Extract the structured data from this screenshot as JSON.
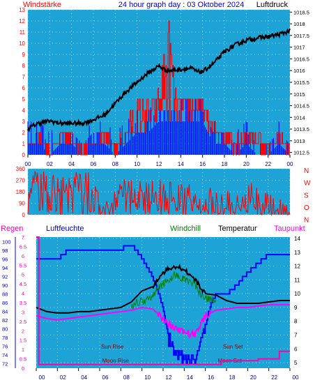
{
  "header": {
    "title": "24 hour graph day : 03 Oktober 2024",
    "left_label": "Windstärke",
    "right_label": "Luftdruck"
  },
  "colors": {
    "plot_bg": "#1ea3d6",
    "wind_speed": "#ff0000",
    "wind_gust_blue": "#0000ff",
    "pressure": "#000000",
    "title": "#0000cc",
    "wind_direction": "#ff0000",
    "humidity": "#0000ff",
    "windchill": "#008000",
    "temperature": "#000000",
    "dewpoint": "#ff00ff",
    "rain": "#ff00aa",
    "sun_moon": "#8b0000"
  },
  "chart_data": [
    {
      "type": "line",
      "title": "24 hour graph day : 03 Oktober 2024",
      "x_ticks": [
        "00",
        "02",
        "04",
        "06",
        "08",
        "10",
        "12",
        "14",
        "16",
        "18",
        "20",
        "22",
        "00"
      ],
      "xlim": [
        0,
        24
      ],
      "y_left_label": "Windstärke",
      "y_left_ticks": [
        0,
        1,
        2,
        3,
        4,
        5,
        6,
        7,
        8,
        9,
        10,
        11,
        12,
        13
      ],
      "ylim_left": [
        0,
        13
      ],
      "y_right_label": "Luftdruck",
      "y_right_ticks": [
        1012.5,
        1013,
        1013.5,
        1014,
        1014.5,
        1015,
        1015.5,
        1016,
        1016.5,
        1017,
        1017.5,
        1018,
        1018.5
      ],
      "ylim_right": [
        1012.4,
        1018.6
      ],
      "series": [
        {
          "name": "Luftdruck",
          "axis": "right",
          "x": [
            0,
            0.5,
            1,
            2,
            3,
            4,
            5,
            6,
            7,
            8,
            9,
            10,
            11,
            12,
            12.5,
            13,
            14,
            15,
            15.5,
            16,
            17,
            18,
            19,
            20,
            21,
            22,
            23,
            24
          ],
          "y": [
            1013.5,
            1013.65,
            1013.75,
            1013.85,
            1013.75,
            1013.75,
            1013.75,
            1013.9,
            1014.1,
            1014.6,
            1015.1,
            1015.5,
            1015.9,
            1016.2,
            1016.05,
            1016.0,
            1016.05,
            1016.1,
            1015.95,
            1015.95,
            1016.3,
            1016.8,
            1017.1,
            1017.3,
            1017.4,
            1017.45,
            1017.55,
            1017.7
          ]
        },
        {
          "name": "Windstärke",
          "axis": "left",
          "x": [
            0,
            1,
            2,
            3,
            4,
            5,
            6,
            7,
            8,
            9,
            10,
            11,
            12,
            12.5,
            13,
            13.5,
            14,
            15,
            16,
            17,
            18,
            19,
            20,
            21,
            22,
            23,
            24
          ],
          "y": [
            1,
            2,
            1,
            2,
            2,
            1,
            2,
            2,
            1,
            3,
            5,
            5,
            6,
            10,
            13,
            6,
            5,
            6,
            5,
            3,
            2,
            3,
            2,
            3,
            1,
            2,
            1
          ]
        },
        {
          "name": "Windstärke min",
          "axis": "left",
          "x": [
            0,
            1,
            2,
            3,
            4,
            5,
            6,
            7,
            8,
            9,
            10,
            11,
            12,
            13,
            14,
            15,
            16,
            17,
            18,
            19,
            20,
            21,
            22,
            23,
            24
          ],
          "y": [
            1,
            1,
            0,
            1,
            1,
            0,
            1,
            1,
            0,
            1,
            2,
            2,
            3,
            3,
            3,
            3,
            3,
            1,
            1,
            0,
            1,
            0,
            0,
            1,
            0
          ]
        }
      ]
    },
    {
      "type": "line",
      "x_ticks": [
        "00",
        "02",
        "04",
        "06",
        "08",
        "10",
        "12",
        "14",
        "16",
        "18",
        "20",
        "22",
        "00"
      ],
      "xlim": [
        0,
        24
      ],
      "y_ticks": [
        0,
        90,
        180,
        270,
        360
      ],
      "ylim": [
        0,
        360
      ],
      "direction_labels": [
        "N",
        "W",
        "S",
        "O",
        "N"
      ],
      "series": [
        {
          "name": "Windrichtung",
          "x": [
            0,
            0.5,
            1,
            2,
            3,
            4,
            5,
            6,
            7,
            8,
            9,
            10,
            11,
            12,
            13,
            14,
            15,
            16,
            17,
            18,
            19,
            20,
            21,
            22,
            23,
            24
          ],
          "y": [
            200,
            230,
            230,
            250,
            240,
            250,
            250,
            220,
            80,
            120,
            200,
            150,
            180,
            170,
            200,
            140,
            160,
            60,
            120,
            120,
            90,
            150,
            130,
            60,
            30,
            20
          ]
        }
      ]
    },
    {
      "type": "line",
      "x_ticks": [
        "00",
        "02",
        "04",
        "06",
        "08",
        "10",
        "12",
        "14",
        "16",
        "18",
        "20",
        "22",
        "00"
      ],
      "xlim": [
        0,
        24
      ],
      "legend": [
        "Regen",
        "Luftfeuchte",
        "Windchill",
        "Temperatur",
        "Taupunkt"
      ],
      "y_rain_ticks": [
        0,
        0.5,
        1,
        1.5,
        2,
        2.5,
        3,
        3.5,
        4,
        4.5,
        5,
        5.5,
        6,
        6.5,
        7
      ],
      "ylim_rain": [
        0,
        7
      ],
      "y_humidity_ticks": [
        72,
        74,
        76,
        78,
        80,
        82,
        84,
        86,
        88,
        90,
        92,
        94,
        96,
        98,
        100
      ],
      "ylim_humidity": [
        71,
        101
      ],
      "y_temp_ticks": [
        5,
        6,
        7,
        8,
        9,
        10,
        11,
        12,
        13,
        14
      ],
      "ylim_temp": [
        4.6,
        14.1
      ],
      "annotations": [
        {
          "text": "Sun Rise",
          "x": 7.2
        },
        {
          "text": "Moon Rise",
          "x": 7.5
        },
        {
          "text": "Sun Set",
          "x": 18.6
        },
        {
          "text": "Moon Set",
          "x": 18.3
        }
      ],
      "series": [
        {
          "name": "Luftfeuchte",
          "axis": "humidity",
          "x": [
            0,
            2,
            2.5,
            3,
            8,
            8.5,
            9,
            9.5,
            10,
            11,
            12,
            12.5,
            13,
            14,
            15,
            16,
            16.5,
            17,
            18,
            19,
            20,
            21,
            22,
            24
          ],
          "y": [
            96,
            96,
            97,
            98,
            98,
            99,
            99,
            98,
            96,
            92,
            85,
            78,
            74,
            73,
            73,
            80,
            86,
            88,
            88,
            90,
            93,
            95,
            97,
            97
          ]
        },
        {
          "name": "Temperatur",
          "axis": "temp",
          "x": [
            0,
            1,
            2,
            3,
            4,
            5,
            6,
            7,
            8,
            9,
            10,
            11,
            12,
            13,
            14,
            15,
            16,
            17,
            18,
            19,
            20,
            21,
            22,
            23,
            24
          ],
          "y": [
            9.0,
            8.7,
            8.6,
            8.6,
            8.7,
            8.7,
            8.8,
            8.9,
            9.0,
            9.4,
            10.2,
            10.5,
            11.5,
            12.0,
            11.8,
            11.0,
            10.0,
            9.9,
            9.5,
            9.3,
            9.3,
            9.3,
            9.4,
            9.5,
            9.5
          ]
        },
        {
          "name": "Windchill",
          "axis": "temp",
          "x": [
            9,
            10,
            11,
            11.5,
            12,
            12.5,
            13,
            14,
            15,
            15.5,
            16,
            17
          ],
          "y": [
            9.4,
            9.8,
            10.0,
            10.6,
            11.0,
            11.3,
            11.6,
            11.4,
            11.0,
            10.2,
            9.9,
            9.8
          ]
        },
        {
          "name": "Taupunkt",
          "axis": "temp",
          "x": [
            0,
            1,
            2,
            3,
            4,
            5,
            6,
            7,
            8,
            9,
            10,
            11,
            12,
            13,
            14,
            15,
            16,
            17,
            18,
            19,
            20,
            21,
            22,
            23,
            24
          ],
          "y": [
            8.4,
            8.2,
            8.1,
            8.2,
            8.3,
            8.4,
            8.5,
            8.6,
            8.7,
            8.8,
            9.0,
            8.9,
            8.2,
            7.5,
            7.2,
            7.0,
            8.4,
            8.8,
            8.9,
            9.0,
            9.0,
            9.1,
            9.2,
            9.2,
            9.2
          ]
        },
        {
          "name": "Regen",
          "axis": "rain",
          "x": [
            0,
            0.2,
            0.25,
            17,
            17.5,
            21,
            22.8,
            23,
            24
          ],
          "y": [
            7,
            7,
            0.2,
            0.2,
            0.4,
            0.5,
            0.5,
            0.9,
            0.9
          ]
        }
      ]
    }
  ]
}
